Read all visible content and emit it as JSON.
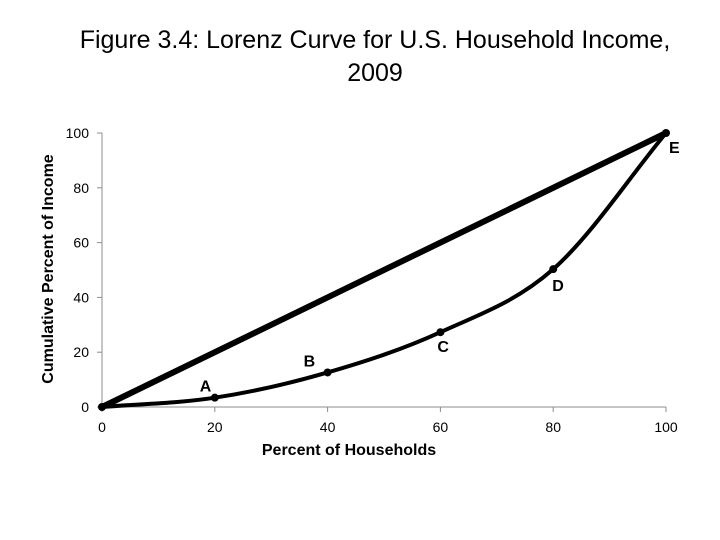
{
  "chart_data": {
    "type": "line",
    "title": "Figure 3.4: Lorenz Curve for U.S. Household Income, 2009",
    "xlabel": "Percent of Households",
    "ylabel": "Cumulative Percent of Income",
    "xlim": [
      0,
      100
    ],
    "ylim": [
      0,
      100
    ],
    "x_ticks": [
      0,
      20,
      40,
      60,
      80,
      100
    ],
    "y_ticks": [
      0,
      20,
      40,
      60,
      80,
      100
    ],
    "grid": false,
    "series": [
      {
        "color": "#000000",
        "x": [
          0,
          100
        ],
        "y": [
          0,
          100
        ]
      },
      {
        "color": "#000000",
        "x": [
          0,
          20,
          40,
          60,
          80,
          100
        ],
        "y": [
          0,
          3.4,
          12.6,
          27.3,
          50.3,
          100
        ]
      }
    ],
    "annotations": [
      {
        "text": "A",
        "x": 20,
        "y": 3.4
      },
      {
        "text": "B",
        "x": 40,
        "y": 12.6
      },
      {
        "text": "C",
        "x": 60,
        "y": 27.3
      },
      {
        "text": "D",
        "x": 80,
        "y": 50.3
      },
      {
        "text": "E",
        "x": 100,
        "y": 100
      }
    ]
  }
}
